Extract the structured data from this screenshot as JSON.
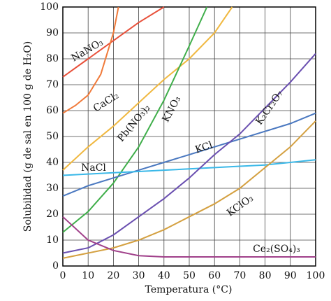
{
  "chart_data": {
    "type": "line",
    "x_label": "Temperatura (°C)",
    "y_label": "Solubilidad (g de sal en 100 g de H₂O)",
    "xlim": [
      0,
      100
    ],
    "ylim": [
      0,
      100
    ],
    "xticks": [
      0,
      10,
      20,
      30,
      40,
      50,
      60,
      70,
      80,
      90,
      100
    ],
    "yticks": [
      0,
      10,
      20,
      30,
      40,
      50,
      60,
      70,
      80,
      90,
      100
    ],
    "grid": true,
    "series": [
      {
        "name": "NaNO₃",
        "color": "#e8503a",
        "x": [
          0,
          10,
          20,
          30,
          40
        ],
        "values": [
          73,
          80,
          87,
          94,
          100
        ]
      },
      {
        "name": "CaCl₂",
        "color": "#f07a3a",
        "x": [
          0,
          5,
          10,
          15,
          20,
          22
        ],
        "values": [
          59,
          62,
          66,
          74,
          90,
          100
        ]
      },
      {
        "name": "Pb(NO₃)₂",
        "color": "#f0b840",
        "x": [
          0,
          10,
          20,
          30,
          40,
          50,
          60,
          67
        ],
        "values": [
          37,
          46,
          54,
          63,
          72,
          80,
          90,
          100
        ]
      },
      {
        "name": "KNO₃",
        "color": "#3fae4a",
        "x": [
          0,
          10,
          20,
          30,
          40,
          50,
          57
        ],
        "values": [
          13,
          21,
          32,
          46,
          64,
          85,
          100
        ]
      },
      {
        "name": "KCl",
        "color": "#4a78c0",
        "x": [
          0,
          10,
          20,
          30,
          40,
          50,
          60,
          70,
          80,
          90,
          100
        ],
        "values": [
          27,
          31,
          34,
          37,
          40,
          43,
          46,
          49,
          52,
          55,
          59
        ]
      },
      {
        "name": "NaCl",
        "color": "#3ab8e8",
        "x": [
          0,
          10,
          20,
          30,
          40,
          50,
          60,
          70,
          80,
          90,
          100
        ],
        "values": [
          35,
          35.5,
          36,
          36.5,
          37,
          37.5,
          38,
          38.5,
          39,
          40,
          41
        ]
      },
      {
        "name": "K₂Cr₂O₇",
        "color": "#6a4fb0",
        "x": [
          0,
          10,
          20,
          30,
          40,
          50,
          60,
          70,
          80,
          90,
          100
        ],
        "values": [
          5,
          7,
          12,
          19,
          26,
          34,
          43,
          51,
          61,
          71,
          82
        ]
      },
      {
        "name": "KClO₃",
        "color": "#d4a040",
        "x": [
          0,
          10,
          20,
          30,
          40,
          50,
          60,
          70,
          80,
          90,
          100
        ],
        "values": [
          3,
          5,
          7,
          10,
          14,
          19,
          24,
          30,
          38,
          46,
          56
        ]
      },
      {
        "name": "Ce₂(SO₄)₃",
        "color": "#a0408a",
        "x": [
          0,
          10,
          20,
          30,
          40,
          50,
          60,
          70,
          80,
          90,
          100
        ],
        "values": [
          19,
          10,
          6,
          4,
          3.5,
          3.5,
          3.5,
          3.5,
          3.5,
          3.5,
          3.5
        ]
      }
    ]
  }
}
